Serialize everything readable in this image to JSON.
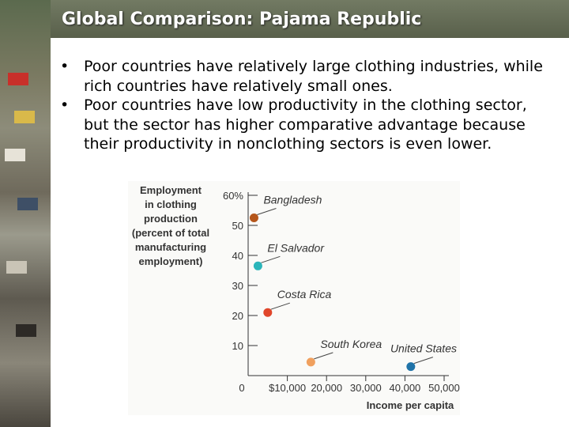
{
  "slide": {
    "title": "Global Comparison: Pajama Republic",
    "bullets": [
      "Poor countries have relatively large clothing industries, while rich countries have relatively small ones.",
      "Poor countries have low productivity in the clothing sector, but the sector has higher comparative advantage because their productivity in nonclothing sectors is even lower."
    ]
  },
  "chart_data": {
    "type": "scatter",
    "ylabel": [
      "Employment",
      "in clothing",
      "production",
      "(percent of total",
      "manufacturing",
      "employment)"
    ],
    "xlabel": "Income per capita",
    "x_ticks": [
      "0",
      "$10,000",
      "20,000",
      "30,000",
      "40,000",
      "50,000"
    ],
    "x_tick_values": [
      0,
      10000,
      20000,
      30000,
      40000,
      50000
    ],
    "y_ticks": [
      "10",
      "20",
      "30",
      "40",
      "50",
      "60%"
    ],
    "y_tick_values": [
      10,
      20,
      30,
      40,
      50,
      60
    ],
    "xlim": [
      0,
      50000
    ],
    "ylim": [
      0,
      60
    ],
    "grid": false,
    "points": [
      {
        "label": "Bangladesh",
        "x": 1500,
        "y": 52.5,
        "color": "#b5561b"
      },
      {
        "label": "El Salvador",
        "x": 2500,
        "y": 36.5,
        "color": "#2bb5ba"
      },
      {
        "label": "Costa Rica",
        "x": 5000,
        "y": 21,
        "color": "#e0462b"
      },
      {
        "label": "South Korea",
        "x": 16000,
        "y": 4.5,
        "color": "#f0a05e"
      },
      {
        "label": "United States",
        "x": 41500,
        "y": 3,
        "color": "#1f73a8"
      }
    ]
  }
}
